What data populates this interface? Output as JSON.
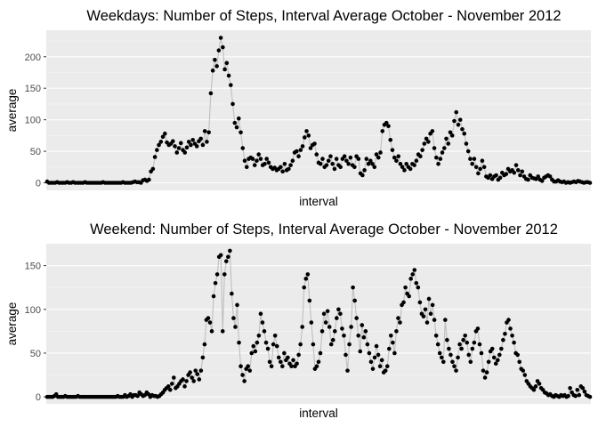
{
  "chart_data": [
    {
      "type": "line",
      "title": "Weekdays: Number of Steps, Interval Average October - November 2012",
      "xlabel": "interval",
      "ylabel": "average",
      "ylim": [
        -12,
        242
      ],
      "yticks": [
        0,
        50,
        100,
        150,
        200
      ],
      "x_ticks_shown": false,
      "grid": true,
      "series": [
        {
          "values": [
            2,
            0,
            0,
            0,
            0,
            1,
            0,
            0,
            0,
            0,
            1,
            0,
            0,
            1,
            0,
            0,
            0,
            0,
            0,
            1,
            0,
            0,
            0,
            0,
            0,
            0,
            0,
            0,
            1,
            0,
            0,
            0,
            0,
            0,
            0,
            0,
            0,
            0,
            1,
            0,
            0,
            0,
            0,
            1,
            2,
            1,
            1,
            0,
            4,
            5,
            3,
            5,
            18,
            22,
            41,
            52,
            60,
            65,
            73,
            78,
            64,
            60,
            62,
            66,
            58,
            48,
            55,
            63,
            52,
            48,
            56,
            65,
            60,
            68,
            62,
            58,
            66,
            70,
            60,
            82,
            65,
            80,
            142,
            178,
            195,
            185,
            210,
            230,
            215,
            180,
            190,
            170,
            155,
            125,
            95,
            88,
            102,
            80,
            55,
            35,
            25,
            38,
            40,
            38,
            28,
            35,
            45,
            38,
            28,
            30,
            38,
            32,
            25,
            22,
            24,
            20,
            22,
            25,
            18,
            30,
            20,
            22,
            28,
            35,
            48,
            50,
            42,
            52,
            58,
            72,
            82,
            75,
            55,
            60,
            62,
            45,
            32,
            30,
            38,
            25,
            28,
            35,
            42,
            30,
            22,
            38,
            28,
            25,
            38,
            42,
            35,
            30,
            40,
            28,
            25,
            42,
            38,
            15,
            12,
            20,
            38,
            30,
            35,
            30,
            25,
            45,
            40,
            48,
            82,
            92,
            95,
            90,
            68,
            52,
            40,
            35,
            42,
            30,
            25,
            20,
            30,
            25,
            22,
            30,
            28,
            35,
            45,
            42,
            52,
            62,
            70,
            65,
            78,
            82,
            55,
            40,
            30,
            38,
            48,
            55,
            70,
            62,
            80,
            75,
            98,
            112,
            92,
            100,
            85,
            78,
            62,
            50,
            38,
            30,
            38,
            25,
            15,
            22,
            35,
            25,
            10,
            8,
            12,
            6,
            10,
            12,
            5,
            8,
            16,
            12,
            14,
            22,
            18,
            20,
            16,
            28,
            20,
            12,
            18,
            10,
            6,
            5,
            12,
            8,
            7,
            6,
            10,
            5,
            3,
            8,
            10,
            12,
            10,
            5,
            2,
            2,
            4,
            2,
            1,
            2,
            0,
            1,
            0,
            1,
            2,
            1,
            3,
            2,
            1,
            0,
            1,
            1,
            0
          ]
        }
      ]
    },
    {
      "type": "line",
      "title": "Weekend: Number of Steps, Interval Average October - November 2012",
      "xlabel": "interval",
      "ylabel": "average",
      "ylim": [
        -8,
        175
      ],
      "yticks": [
        0,
        50,
        100,
        150
      ],
      "x_ticks_shown": false,
      "grid": true,
      "series": [
        {
          "values": [
            0,
            0,
            0,
            0,
            1,
            3,
            0,
            0,
            0,
            0,
            1,
            0,
            0,
            0,
            0,
            0,
            0,
            1,
            0,
            0,
            0,
            0,
            0,
            0,
            0,
            0,
            0,
            0,
            0,
            0,
            0,
            0,
            0,
            0,
            0,
            0,
            0,
            0,
            0,
            1,
            0,
            0,
            0,
            2,
            0,
            1,
            3,
            0,
            2,
            2,
            1,
            5,
            3,
            1,
            2,
            5,
            3,
            0,
            2,
            1,
            1,
            0,
            1,
            3,
            5,
            8,
            10,
            12,
            8,
            15,
            22,
            10,
            12,
            15,
            18,
            20,
            12,
            18,
            25,
            28,
            22,
            18,
            30,
            26,
            20,
            30,
            45,
            60,
            88,
            90,
            85,
            75,
            115,
            130,
            140,
            160,
            162,
            75,
            140,
            155,
            160,
            167,
            118,
            90,
            80,
            105,
            62,
            35,
            25,
            18,
            32,
            35,
            30,
            50,
            58,
            52,
            62,
            70,
            95,
            85,
            75,
            62,
            55,
            40,
            35,
            60,
            70,
            58,
            45,
            40,
            35,
            50,
            42,
            45,
            38,
            35,
            42,
            35,
            38,
            48,
            60,
            80,
            125,
            135,
            140,
            110,
            85,
            60,
            32,
            35,
            40,
            50,
            75,
            95,
            85,
            98,
            80,
            60,
            65,
            75,
            90,
            100,
            95,
            78,
            70,
            48,
            30,
            60,
            80,
            125,
            110,
            90,
            70,
            52,
            82,
            68,
            75,
            60,
            50,
            40,
            32,
            45,
            58,
            48,
            35,
            42,
            28,
            30,
            35,
            55,
            70,
            62,
            50,
            75,
            90,
            85,
            105,
            108,
            125,
            118,
            115,
            135,
            140,
            145,
            130,
            125,
            108,
            95,
            92,
            100,
            85,
            112,
            95,
            105,
            88,
            70,
            60,
            50,
            45,
            40,
            88,
            65,
            55,
            48,
            40,
            35,
            30,
            45,
            60,
            55,
            65,
            70,
            62,
            48,
            40,
            55,
            62,
            75,
            78,
            60,
            50,
            30,
            22,
            28,
            40,
            52,
            55,
            45,
            38,
            42,
            48,
            55,
            65,
            72,
            85,
            88,
            78,
            70,
            62,
            50,
            48,
            40,
            32,
            30,
            25,
            18,
            15,
            12,
            10,
            8,
            12,
            18,
            15,
            10,
            8,
            5,
            4,
            2,
            3,
            1,
            0,
            2,
            1,
            0,
            2,
            1,
            2,
            0,
            1,
            10,
            5,
            2,
            1,
            8,
            2,
            12,
            10,
            6,
            2,
            1,
            0
          ]
        }
      ]
    }
  ]
}
